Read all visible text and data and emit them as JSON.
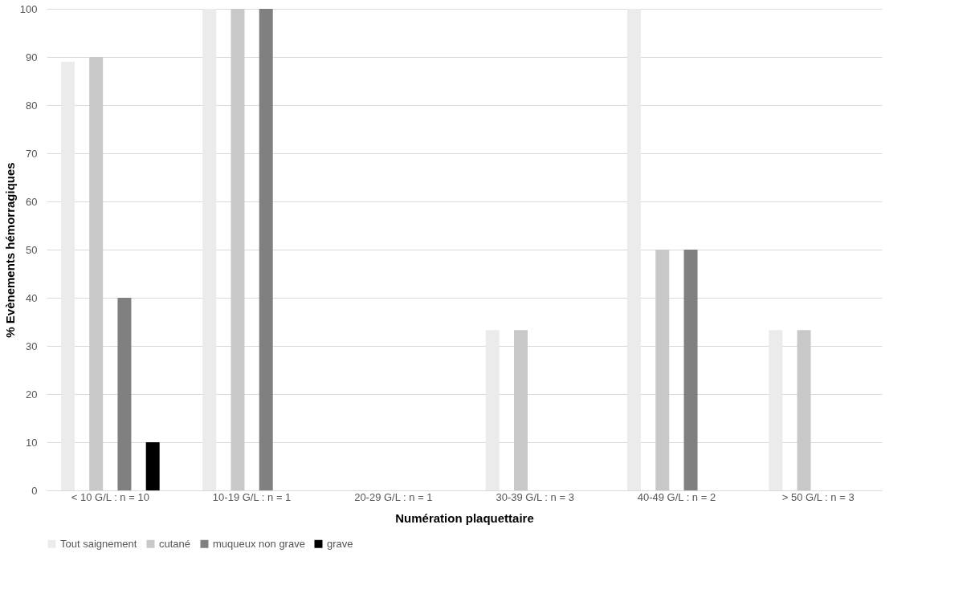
{
  "chart_data": {
    "type": "bar",
    "xlabel": "Numération plaquettaire",
    "ylabel": "% Evènements hémorragiques",
    "categories": [
      "< 10 G/L : n = 10",
      "10-19 G/L : n = 1",
      "20-29 G/L : n = 1",
      "30-39 G/L : n = 3",
      "40-49 G/L : n = 2",
      "> 50 G/L : n = 3"
    ],
    "series": [
      {
        "name": "Tout saignement",
        "color": "#ebebeb",
        "values": [
          89,
          100,
          0,
          33.3,
          100,
          33.3
        ]
      },
      {
        "name": "cutané",
        "color": "#c8c8c8",
        "values": [
          90,
          100,
          0,
          33.3,
          50,
          33.3
        ]
      },
      {
        "name": "muqueux non grave",
        "color": "#808080",
        "values": [
          40,
          100,
          0,
          0,
          50,
          0
        ]
      },
      {
        "name": "grave",
        "color": "#000000",
        "values": [
          10,
          0,
          0,
          0,
          0,
          0
        ]
      }
    ],
    "ylim": [
      0,
      100
    ],
    "yticks": [
      0,
      10,
      20,
      30,
      40,
      50,
      60,
      70,
      80,
      90,
      100
    ],
    "grid": "y",
    "legend": "bottom"
  }
}
